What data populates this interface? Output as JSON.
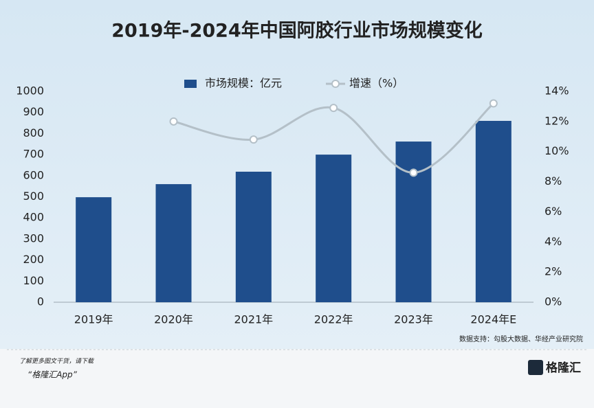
{
  "chart_data": {
    "type": "bar",
    "title": "2019年-2024年中国阿胶行业市场规模变化",
    "categories": [
      "2019年",
      "2020年",
      "2021年",
      "2022年",
      "2023年",
      "2024年E"
    ],
    "series": [
      {
        "name": "市场规模：亿元",
        "type": "bar",
        "color": "#1f4e8c",
        "values": [
          498,
          560,
          619,
          700,
          762,
          860
        ]
      },
      {
        "name": "增速（%）",
        "type": "line",
        "axis": "y2",
        "color": "#b4c0c8",
        "values": [
          null,
          12.0,
          10.8,
          12.9,
          8.6,
          13.2
        ]
      }
    ],
    "ylim": [
      0,
      1000
    ],
    "yticks": [
      0,
      100,
      200,
      300,
      400,
      500,
      600,
      700,
      800,
      900,
      1000
    ],
    "y2lim": [
      0,
      14
    ],
    "y2ticks": [
      {
        "value": 0,
        "label": "0%"
      },
      {
        "value": 2,
        "label": "2%"
      },
      {
        "value": 4,
        "label": "4%"
      },
      {
        "value": 6,
        "label": "6%"
      },
      {
        "value": 8,
        "label": "8%"
      },
      {
        "value": 10,
        "label": "10%"
      },
      {
        "value": 12,
        "label": "12%"
      },
      {
        "value": 14,
        "label": "14%"
      }
    ],
    "legend": "top",
    "source": "数据支持：勾股大数据、华经产业研究院"
  },
  "footer": {
    "note": "了解更多图文干货，请下载",
    "app": "“格隆汇App”",
    "logo": "格隆汇"
  }
}
